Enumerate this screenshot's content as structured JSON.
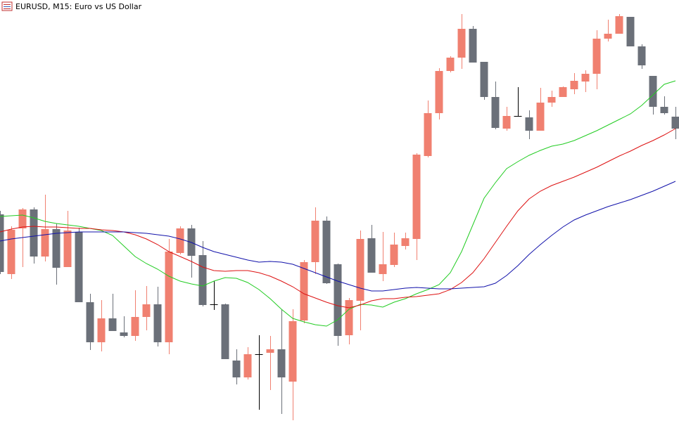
{
  "chart_data": {
    "type": "candlestick",
    "title": "EURUSD, M15:  Euro vs US Dollar",
    "up_color": "#f08070",
    "down_color": "#6b7079",
    "doji_color": "#000000",
    "ylim": [
      0,
      609
    ],
    "open": [
      304,
      219,
      284,
      311,
      244,
      283,
      229,
      279,
      179,
      122,
      156,
      136,
      131,
      158,
      176,
      122,
      249,
      284,
      246,
      176,
      176,
      96,
      72,
      105,
      107,
      112,
      66,
      153,
      236,
      295,
      233,
      132,
      181,
      270,
      219,
      232,
      259,
      269,
      387,
      448,
      508,
      527,
      568,
      521,
      471,
      426,
      444,
      442,
      423,
      463,
      471,
      482,
      493,
      504,
      554,
      561,
      585,
      543,
      501,
      457,
      443
    ],
    "high": [
      309,
      287,
      313,
      314,
      332,
      291,
      309,
      285,
      191,
      182,
      191,
      159,
      196,
      202,
      201,
      269,
      287,
      289,
      266,
      209,
      177,
      112,
      115,
      132,
      131,
      169,
      169,
      239,
      314,
      301,
      234,
      185,
      281,
      289,
      279,
      278,
      278,
      391,
      466,
      512,
      529,
      589,
      572,
      521,
      493,
      457,
      485,
      452,
      484,
      480,
      486,
      505,
      509,
      566,
      581,
      589,
      585,
      546,
      501,
      472,
      457
    ],
    "low": [
      219,
      212,
      229,
      234,
      237,
      204,
      229,
      179,
      111,
      109,
      138,
      129,
      124,
      139,
      116,
      105,
      247,
      214,
      173,
      168,
      98,
      62,
      69,
      26,
      54,
      20,
      11,
      149,
      219,
      205,
      117,
      119,
      139,
      221,
      209,
      229,
      254,
      239,
      385,
      439,
      506,
      511,
      520,
      467,
      425,
      423,
      443,
      411,
      423,
      457,
      471,
      475,
      478,
      482,
      550,
      561,
      543,
      511,
      446,
      446,
      411
    ],
    "close": [
      222,
      282,
      311,
      244,
      283,
      228,
      281,
      179,
      122,
      156,
      138,
      131,
      158,
      176,
      122,
      251,
      284,
      245,
      175,
      176,
      98,
      72,
      105,
      105,
      112,
      72,
      152,
      236,
      295,
      206,
      131,
      182,
      269,
      221,
      233,
      261,
      270,
      389,
      448,
      508,
      527,
      568,
      520,
      471,
      427,
      444,
      444,
      423,
      463,
      471,
      485,
      494,
      504,
      554,
      561,
      586,
      543,
      516,
      457,
      448,
      426
    ],
    "lines": [
      {
        "color": "#22cc22",
        "values": [
          301,
          302,
          303,
          299,
          294,
          291,
          289,
          287,
          284,
          281,
          274,
          259,
          244,
          234,
          226,
          216,
          209,
          205,
          202,
          209,
          214,
          213,
          207,
          197,
          184,
          169,
          156,
          151,
          147,
          145,
          154,
          169,
          176,
          175,
          172,
          179,
          184,
          191,
          197,
          204,
          221,
          251,
          289,
          327,
          349,
          369,
          379,
          388,
          395,
          401,
          404,
          409,
          416,
          423,
          431,
          439,
          447,
          459,
          474,
          489,
          494
        ]
      },
      {
        "color": "#dd1111",
        "values": [
          279,
          283,
          286,
          287,
          286,
          286,
          285,
          284,
          284,
          282,
          281,
          279,
          275,
          269,
          261,
          251,
          244,
          237,
          229,
          224,
          223,
          224,
          224,
          221,
          216,
          209,
          201,
          191,
          185,
          179,
          174,
          171,
          175,
          181,
          184,
          184,
          186,
          187,
          189,
          191,
          197,
          207,
          221,
          241,
          264,
          287,
          309,
          326,
          337,
          345,
          351,
          357,
          364,
          371,
          379,
          387,
          394,
          402,
          409,
          417,
          426
        ]
      },
      {
        "color": "#1111aa",
        "values": [
          266,
          269,
          271,
          273,
          275,
          277,
          278,
          279,
          279,
          279,
          279,
          279,
          278,
          277,
          275,
          273,
          269,
          264,
          257,
          251,
          247,
          243,
          239,
          236,
          237,
          236,
          233,
          227,
          221,
          215,
          209,
          204,
          199,
          195,
          195,
          197,
          199,
          200,
          199,
          198,
          198,
          199,
          200,
          201,
          206,
          217,
          231,
          247,
          261,
          274,
          286,
          296,
          303,
          309,
          315,
          320,
          325,
          331,
          337,
          344,
          351
        ]
      }
    ]
  }
}
